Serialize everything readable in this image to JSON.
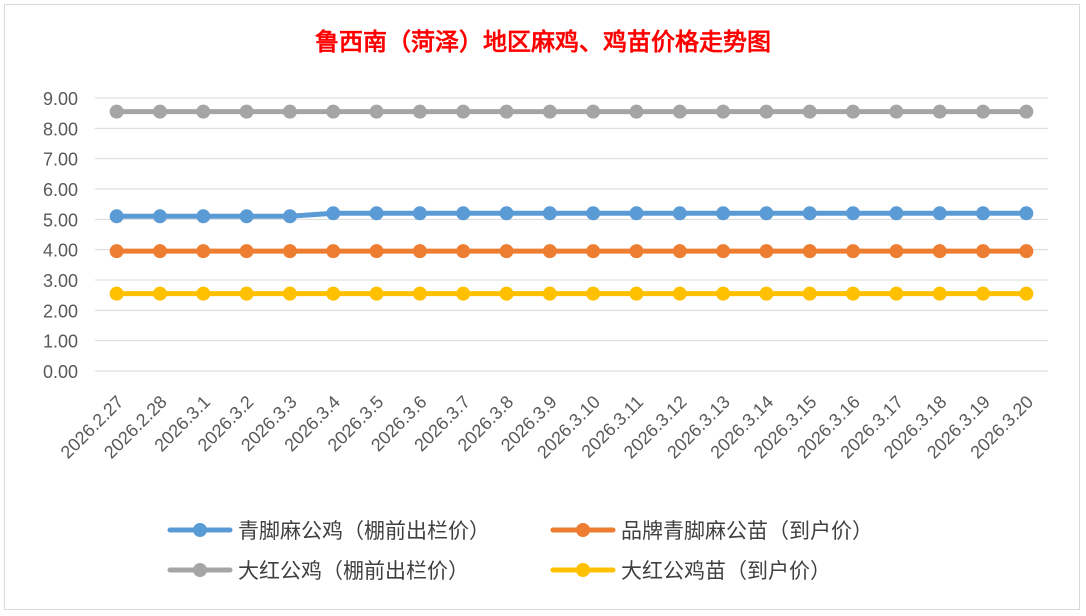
{
  "chart_data": {
    "type": "line",
    "title": "鲁西南（菏泽）地区麻鸡、鸡苗价格走势图",
    "xlabel": "",
    "ylabel": "",
    "ylim": [
      0,
      9
    ],
    "ytick_step": 1,
    "ytick_labels": [
      "0.00",
      "1.00",
      "2.00",
      "3.00",
      "4.00",
      "5.00",
      "6.00",
      "7.00",
      "8.00",
      "9.00"
    ],
    "grid": true,
    "legend_position": "bottom",
    "categories": [
      "2026.2.27",
      "2026.2.28",
      "2026.3.1",
      "2026.3.2",
      "2026.3.3",
      "2026.3.4",
      "2026.3.5",
      "2026.3.6",
      "2026.3.7",
      "2026.3.8",
      "2026.3.9",
      "2026.3.10",
      "2026.3.11",
      "2026.3.12",
      "2026.3.13",
      "2026.3.14",
      "2026.3.15",
      "2026.3.16",
      "2026.3.17",
      "2026.3.18",
      "2026.3.19",
      "2026.3.20"
    ],
    "series": [
      {
        "name": "青脚麻公鸡（棚前出栏价）",
        "color": "#5b9bd5",
        "values": [
          5.1,
          5.1,
          5.1,
          5.1,
          5.1,
          5.2,
          5.2,
          5.2,
          5.2,
          5.2,
          5.2,
          5.2,
          5.2,
          5.2,
          5.2,
          5.2,
          5.2,
          5.2,
          5.2,
          5.2,
          5.2,
          5.2
        ]
      },
      {
        "name": "品牌青脚麻公苗（到户价）",
        "color": "#ed7d31",
        "values": [
          3.95,
          3.95,
          3.95,
          3.95,
          3.95,
          3.95,
          3.95,
          3.95,
          3.95,
          3.95,
          3.95,
          3.95,
          3.95,
          3.95,
          3.95,
          3.95,
          3.95,
          3.95,
          3.95,
          3.95,
          3.95,
          3.95
        ]
      },
      {
        "name": "大红公鸡（棚前出栏价）",
        "color": "#a5a5a5",
        "values": [
          8.55,
          8.55,
          8.55,
          8.55,
          8.55,
          8.55,
          8.55,
          8.55,
          8.55,
          8.55,
          8.55,
          8.55,
          8.55,
          8.55,
          8.55,
          8.55,
          8.55,
          8.55,
          8.55,
          8.55,
          8.55,
          8.55
        ]
      },
      {
        "name": "大红公鸡苗（到户价）",
        "color": "#ffc000",
        "values": [
          2.55,
          2.55,
          2.55,
          2.55,
          2.55,
          2.55,
          2.55,
          2.55,
          2.55,
          2.55,
          2.55,
          2.55,
          2.55,
          2.55,
          2.55,
          2.55,
          2.55,
          2.55,
          2.55,
          2.55,
          2.55,
          2.55
        ]
      }
    ]
  }
}
